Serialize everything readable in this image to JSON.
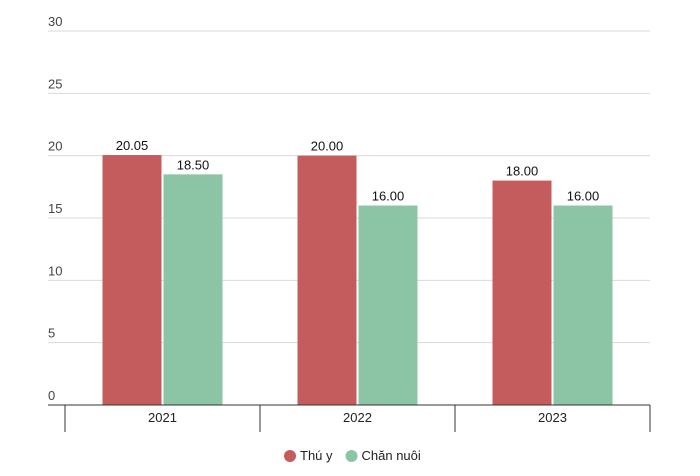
{
  "chart_data": {
    "type": "bar",
    "categories": [
      "2021",
      "2022",
      "2023"
    ],
    "series": [
      {
        "name": "Thú y",
        "values": [
          20.05,
          20.0,
          18.0
        ],
        "labels": [
          "20.05",
          "20.00",
          "18.00"
        ],
        "color": "#c45c5e"
      },
      {
        "name": "Chăn nuôi",
        "values": [
          18.5,
          16.0,
          16.0
        ],
        "labels": [
          "18.50",
          "16.00",
          "16.00"
        ],
        "color": "#8cc5a6"
      }
    ],
    "yticks": [
      0,
      5,
      10,
      15,
      20,
      25,
      30
    ],
    "ylim": [
      0,
      30
    ],
    "grid": true,
    "legend_position": "bottom-center",
    "title": "",
    "xlabel": "",
    "ylabel": ""
  },
  "colors": {
    "grid": "#d9d9d9",
    "axis": "#333333"
  }
}
